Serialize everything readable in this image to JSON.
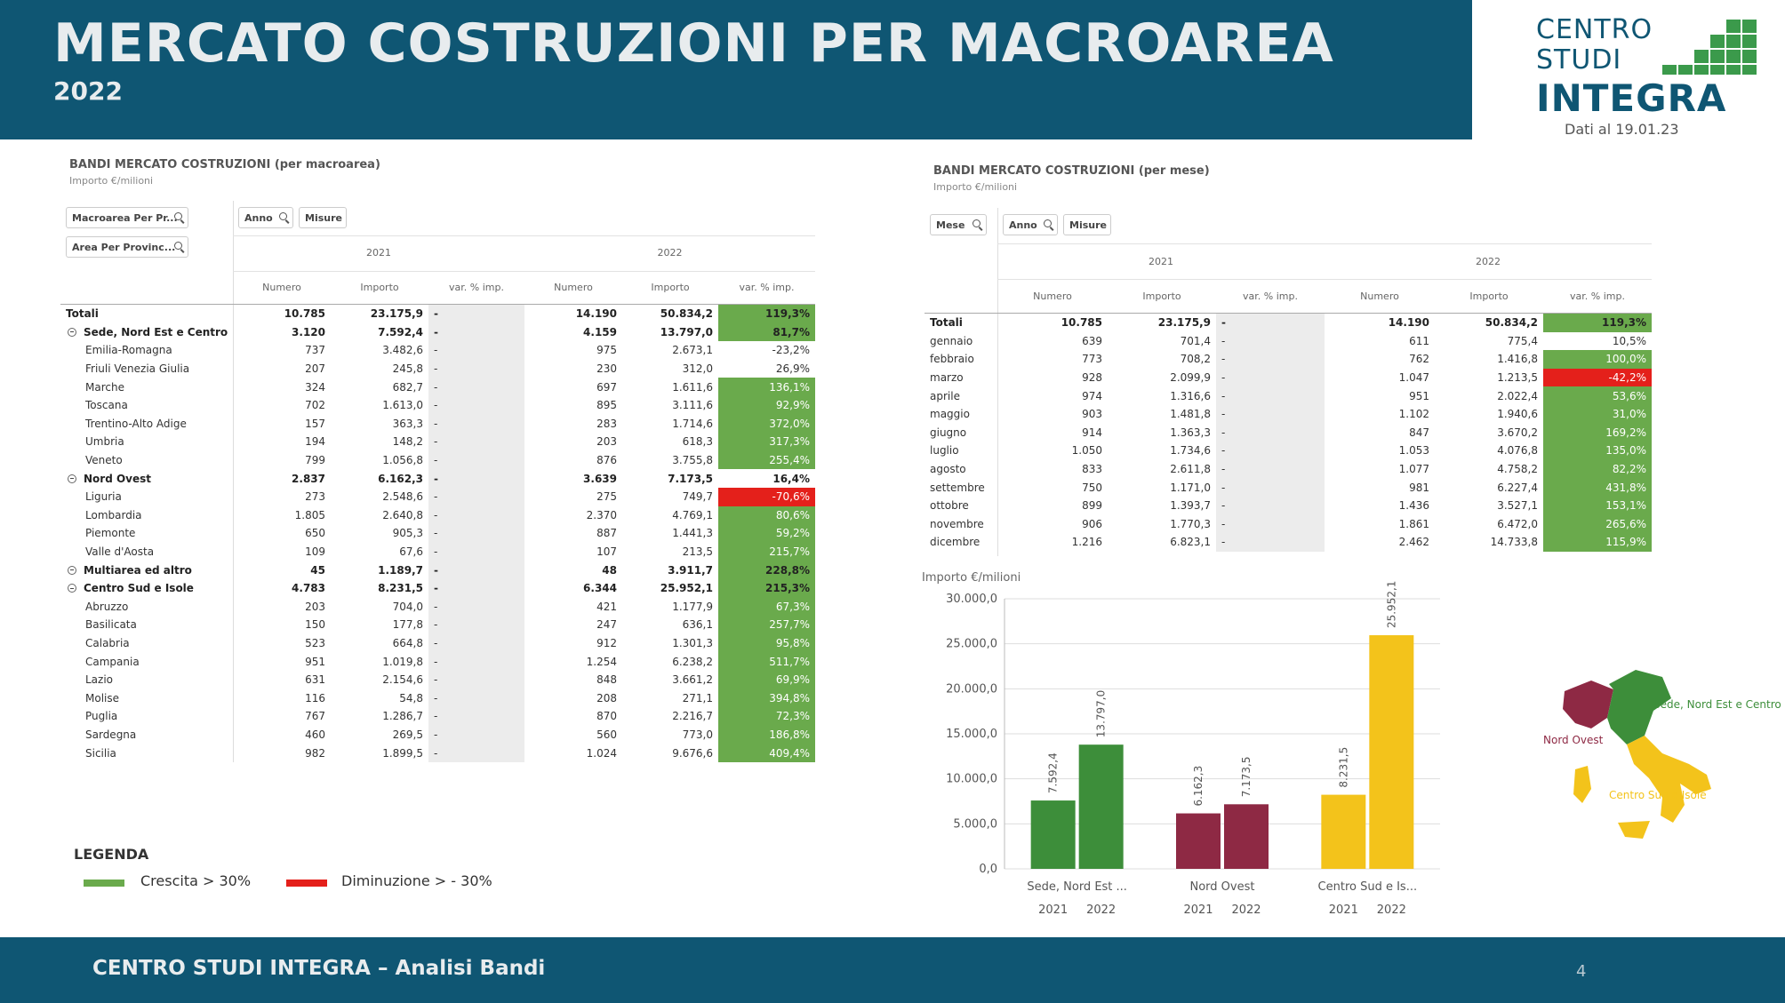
{
  "header": {
    "title": "MERCATO COSTRUZIONI PER MACROAREA",
    "year": "2022"
  },
  "logo": {
    "line1": "CENTRO",
    "line2": "STUDI",
    "line3": "INTEGRA",
    "date": "Dati al 19.01.23",
    "color": "#0f5673",
    "block_color": "#3b9a4b"
  },
  "left_section": {
    "title": "BANDI MERCATO COSTRUZIONI (per macroarea)",
    "subtitle": "Importo €/milioni",
    "filters": [
      "Macroarea Per Pr...",
      "Area Per Provinc..."
    ],
    "buttons": [
      "Anno",
      "Misure"
    ],
    "years": [
      "2021",
      "2022"
    ],
    "columns": [
      "Numero",
      "Importo",
      "var. % imp.",
      "Numero",
      "Importo",
      "var. % imp."
    ],
    "rows": [
      {
        "label": "Totali",
        "n21": "10.785",
        "i21": "23.175,9",
        "v21": "-",
        "n22": "14.190",
        "i22": "50.834,2",
        "v22": "119,3%",
        "kind": "total",
        "status": "pos"
      },
      {
        "label": "Sede, Nord Est e Centro",
        "n21": "3.120",
        "i21": "7.592,4",
        "v21": "-",
        "n22": "4.159",
        "i22": "13.797,0",
        "v22": "81,7%",
        "kind": "group",
        "status": "pos"
      },
      {
        "label": "Emilia-Romagna",
        "n21": "737",
        "i21": "3.482,6",
        "v21": "-",
        "n22": "975",
        "i22": "2.673,1",
        "v22": "-23,2%",
        "kind": "sub",
        "status": ""
      },
      {
        "label": "Friuli Venezia Giulia",
        "n21": "207",
        "i21": "245,8",
        "v21": "-",
        "n22": "230",
        "i22": "312,0",
        "v22": "26,9%",
        "kind": "sub",
        "status": ""
      },
      {
        "label": "Marche",
        "n21": "324",
        "i21": "682,7",
        "v21": "-",
        "n22": "697",
        "i22": "1.611,6",
        "v22": "136,1%",
        "kind": "sub",
        "status": "pos"
      },
      {
        "label": "Toscana",
        "n21": "702",
        "i21": "1.613,0",
        "v21": "-",
        "n22": "895",
        "i22": "3.111,6",
        "v22": "92,9%",
        "kind": "sub",
        "status": "pos"
      },
      {
        "label": "Trentino-Alto Adige",
        "n21": "157",
        "i21": "363,3",
        "v21": "-",
        "n22": "283",
        "i22": "1.714,6",
        "v22": "372,0%",
        "kind": "sub",
        "status": "pos"
      },
      {
        "label": "Umbria",
        "n21": "194",
        "i21": "148,2",
        "v21": "-",
        "n22": "203",
        "i22": "618,3",
        "v22": "317,3%",
        "kind": "sub",
        "status": "pos"
      },
      {
        "label": "Veneto",
        "n21": "799",
        "i21": "1.056,8",
        "v21": "-",
        "n22": "876",
        "i22": "3.755,8",
        "v22": "255,4%",
        "kind": "sub",
        "status": "pos"
      },
      {
        "label": "Nord Ovest",
        "n21": "2.837",
        "i21": "6.162,3",
        "v21": "-",
        "n22": "3.639",
        "i22": "7.173,5",
        "v22": "16,4%",
        "kind": "group",
        "status": ""
      },
      {
        "label": "Liguria",
        "n21": "273",
        "i21": "2.548,6",
        "v21": "-",
        "n22": "275",
        "i22": "749,7",
        "v22": "-70,6%",
        "kind": "sub",
        "status": "neg"
      },
      {
        "label": "Lombardia",
        "n21": "1.805",
        "i21": "2.640,8",
        "v21": "-",
        "n22": "2.370",
        "i22": "4.769,1",
        "v22": "80,6%",
        "kind": "sub",
        "status": "pos"
      },
      {
        "label": "Piemonte",
        "n21": "650",
        "i21": "905,3",
        "v21": "-",
        "n22": "887",
        "i22": "1.441,3",
        "v22": "59,2%",
        "kind": "sub",
        "status": "pos"
      },
      {
        "label": "Valle d'Aosta",
        "n21": "109",
        "i21": "67,6",
        "v21": "-",
        "n22": "107",
        "i22": "213,5",
        "v22": "215,7%",
        "kind": "sub",
        "status": "pos"
      },
      {
        "label": "Multiarea ed altro",
        "n21": "45",
        "i21": "1.189,7",
        "v21": "-",
        "n22": "48",
        "i22": "3.911,7",
        "v22": "228,8%",
        "kind": "group",
        "status": "pos"
      },
      {
        "label": "Centro Sud e Isole",
        "n21": "4.783",
        "i21": "8.231,5",
        "v21": "-",
        "n22": "6.344",
        "i22": "25.952,1",
        "v22": "215,3%",
        "kind": "group",
        "status": "pos"
      },
      {
        "label": "Abruzzo",
        "n21": "203",
        "i21": "704,0",
        "v21": "-",
        "n22": "421",
        "i22": "1.177,9",
        "v22": "67,3%",
        "kind": "sub",
        "status": "pos"
      },
      {
        "label": "Basilicata",
        "n21": "150",
        "i21": "177,8",
        "v21": "-",
        "n22": "247",
        "i22": "636,1",
        "v22": "257,7%",
        "kind": "sub",
        "status": "pos"
      },
      {
        "label": "Calabria",
        "n21": "523",
        "i21": "664,8",
        "v21": "-",
        "n22": "912",
        "i22": "1.301,3",
        "v22": "95,8%",
        "kind": "sub",
        "status": "pos"
      },
      {
        "label": "Campania",
        "n21": "951",
        "i21": "1.019,8",
        "v21": "-",
        "n22": "1.254",
        "i22": "6.238,2",
        "v22": "511,7%",
        "kind": "sub",
        "status": "pos"
      },
      {
        "label": "Lazio",
        "n21": "631",
        "i21": "2.154,6",
        "v21": "-",
        "n22": "848",
        "i22": "3.661,2",
        "v22": "69,9%",
        "kind": "sub",
        "status": "pos"
      },
      {
        "label": "Molise",
        "n21": "116",
        "i21": "54,8",
        "v21": "-",
        "n22": "208",
        "i22": "271,1",
        "v22": "394,8%",
        "kind": "sub",
        "status": "pos"
      },
      {
        "label": "Puglia",
        "n21": "767",
        "i21": "1.286,7",
        "v21": "-",
        "n22": "870",
        "i22": "2.216,7",
        "v22": "72,3%",
        "kind": "sub",
        "status": "pos"
      },
      {
        "label": "Sardegna",
        "n21": "460",
        "i21": "269,5",
        "v21": "-",
        "n22": "560",
        "i22": "773,0",
        "v22": "186,8%",
        "kind": "sub",
        "status": "pos"
      },
      {
        "label": "Sicilia",
        "n21": "982",
        "i21": "1.899,5",
        "v21": "-",
        "n22": "1.024",
        "i22": "9.676,6",
        "v22": "409,4%",
        "kind": "sub",
        "status": "pos"
      }
    ]
  },
  "right_section": {
    "title": "BANDI MERCATO COSTRUZIONI (per mese)",
    "subtitle": "Importo €/milioni",
    "filters": [
      "Mese",
      "Anno",
      "Misure"
    ],
    "years": [
      "2021",
      "2022"
    ],
    "columns": [
      "Numero",
      "Importo",
      "var. % imp.",
      "Numero",
      "Importo",
      "var. % imp."
    ],
    "rows": [
      {
        "label": "Totali",
        "n21": "10.785",
        "i21": "23.175,9",
        "v21": "-",
        "n22": "14.190",
        "i22": "50.834,2",
        "v22": "119,3%",
        "kind": "total",
        "status": "pos"
      },
      {
        "label": "gennaio",
        "n21": "639",
        "i21": "701,4",
        "v21": "-",
        "n22": "611",
        "i22": "775,4",
        "v22": "10,5%",
        "kind": "month",
        "status": ""
      },
      {
        "label": "febbraio",
        "n21": "773",
        "i21": "708,2",
        "v21": "-",
        "n22": "762",
        "i22": "1.416,8",
        "v22": "100,0%",
        "kind": "month",
        "status": "pos"
      },
      {
        "label": "marzo",
        "n21": "928",
        "i21": "2.099,9",
        "v21": "-",
        "n22": "1.047",
        "i22": "1.213,5",
        "v22": "-42,2%",
        "kind": "month",
        "status": "neg"
      },
      {
        "label": "aprile",
        "n21": "974",
        "i21": "1.316,6",
        "v21": "-",
        "n22": "951",
        "i22": "2.022,4",
        "v22": "53,6%",
        "kind": "month",
        "status": "pos"
      },
      {
        "label": "maggio",
        "n21": "903",
        "i21": "1.481,8",
        "v21": "-",
        "n22": "1.102",
        "i22": "1.940,6",
        "v22": "31,0%",
        "kind": "month",
        "status": "pos"
      },
      {
        "label": "giugno",
        "n21": "914",
        "i21": "1.363,3",
        "v21": "-",
        "n22": "847",
        "i22": "3.670,2",
        "v22": "169,2%",
        "kind": "month",
        "status": "pos"
      },
      {
        "label": "luglio",
        "n21": "1.050",
        "i21": "1.734,6",
        "v21": "-",
        "n22": "1.053",
        "i22": "4.076,8",
        "v22": "135,0%",
        "kind": "month",
        "status": "pos"
      },
      {
        "label": "agosto",
        "n21": "833",
        "i21": "2.611,8",
        "v21": "-",
        "n22": "1.077",
        "i22": "4.758,2",
        "v22": "82,2%",
        "kind": "month",
        "status": "pos"
      },
      {
        "label": "settembre",
        "n21": "750",
        "i21": "1.171,0",
        "v21": "-",
        "n22": "981",
        "i22": "6.227,4",
        "v22": "431,8%",
        "kind": "month",
        "status": "pos"
      },
      {
        "label": "ottobre",
        "n21": "899",
        "i21": "1.393,7",
        "v21": "-",
        "n22": "1.436",
        "i22": "3.527,1",
        "v22": "153,1%",
        "kind": "month",
        "status": "pos"
      },
      {
        "label": "novembre",
        "n21": "906",
        "i21": "1.770,3",
        "v21": "-",
        "n22": "1.861",
        "i22": "6.472,0",
        "v22": "265,6%",
        "kind": "month",
        "status": "pos"
      },
      {
        "label": "dicembre",
        "n21": "1.216",
        "i21": "6.823,1",
        "v21": "-",
        "n22": "2.462",
        "i22": "14.733,8",
        "v22": "115,9%",
        "kind": "month",
        "status": "pos"
      }
    ]
  },
  "chart_data": {
    "type": "bar",
    "title": "Importo €/milioni",
    "categories": [
      "Sede, Nord Est ...",
      "Nord Ovest",
      "Centro Sud e Is..."
    ],
    "series_labels": [
      "2021",
      "2022"
    ],
    "values": [
      [
        7592.4,
        13797.0
      ],
      [
        6162.3,
        7173.5
      ],
      [
        8231.5,
        25952.1
      ]
    ],
    "value_labels": [
      [
        "7.592,4",
        "13.797,0"
      ],
      [
        "6.162,3",
        "7.173,5"
      ],
      [
        "8.231,5",
        "25.952,1"
      ]
    ],
    "colors": [
      "#3d8e3a",
      "#8e2944",
      "#f3c31b"
    ],
    "ylim": [
      0,
      30000
    ],
    "yticks": [
      0,
      5000,
      10000,
      15000,
      20000,
      25000,
      30000
    ],
    "ytick_labels": [
      "0,0",
      "5.000,0",
      "10.000,0",
      "15.000,0",
      "20.000,0",
      "25.000,0",
      "30.000,0"
    ]
  },
  "map": {
    "labels": [
      "Sede, Nord Est e Centro",
      "Nord Ovest",
      "Centro Sud e Isole"
    ],
    "colors": [
      "#3d8e3a",
      "#8e2944",
      "#f3c31b"
    ]
  },
  "legend": {
    "title": "LEGENDA",
    "items": [
      {
        "label": "Crescita > 30%",
        "color": "#6aaa4c"
      },
      {
        "label": "Diminuzione > - 30%",
        "color": "#e4201b"
      }
    ]
  },
  "footer": {
    "text": "CENTRO STUDI INTEGRA – Analisi Bandi",
    "page": "4"
  }
}
